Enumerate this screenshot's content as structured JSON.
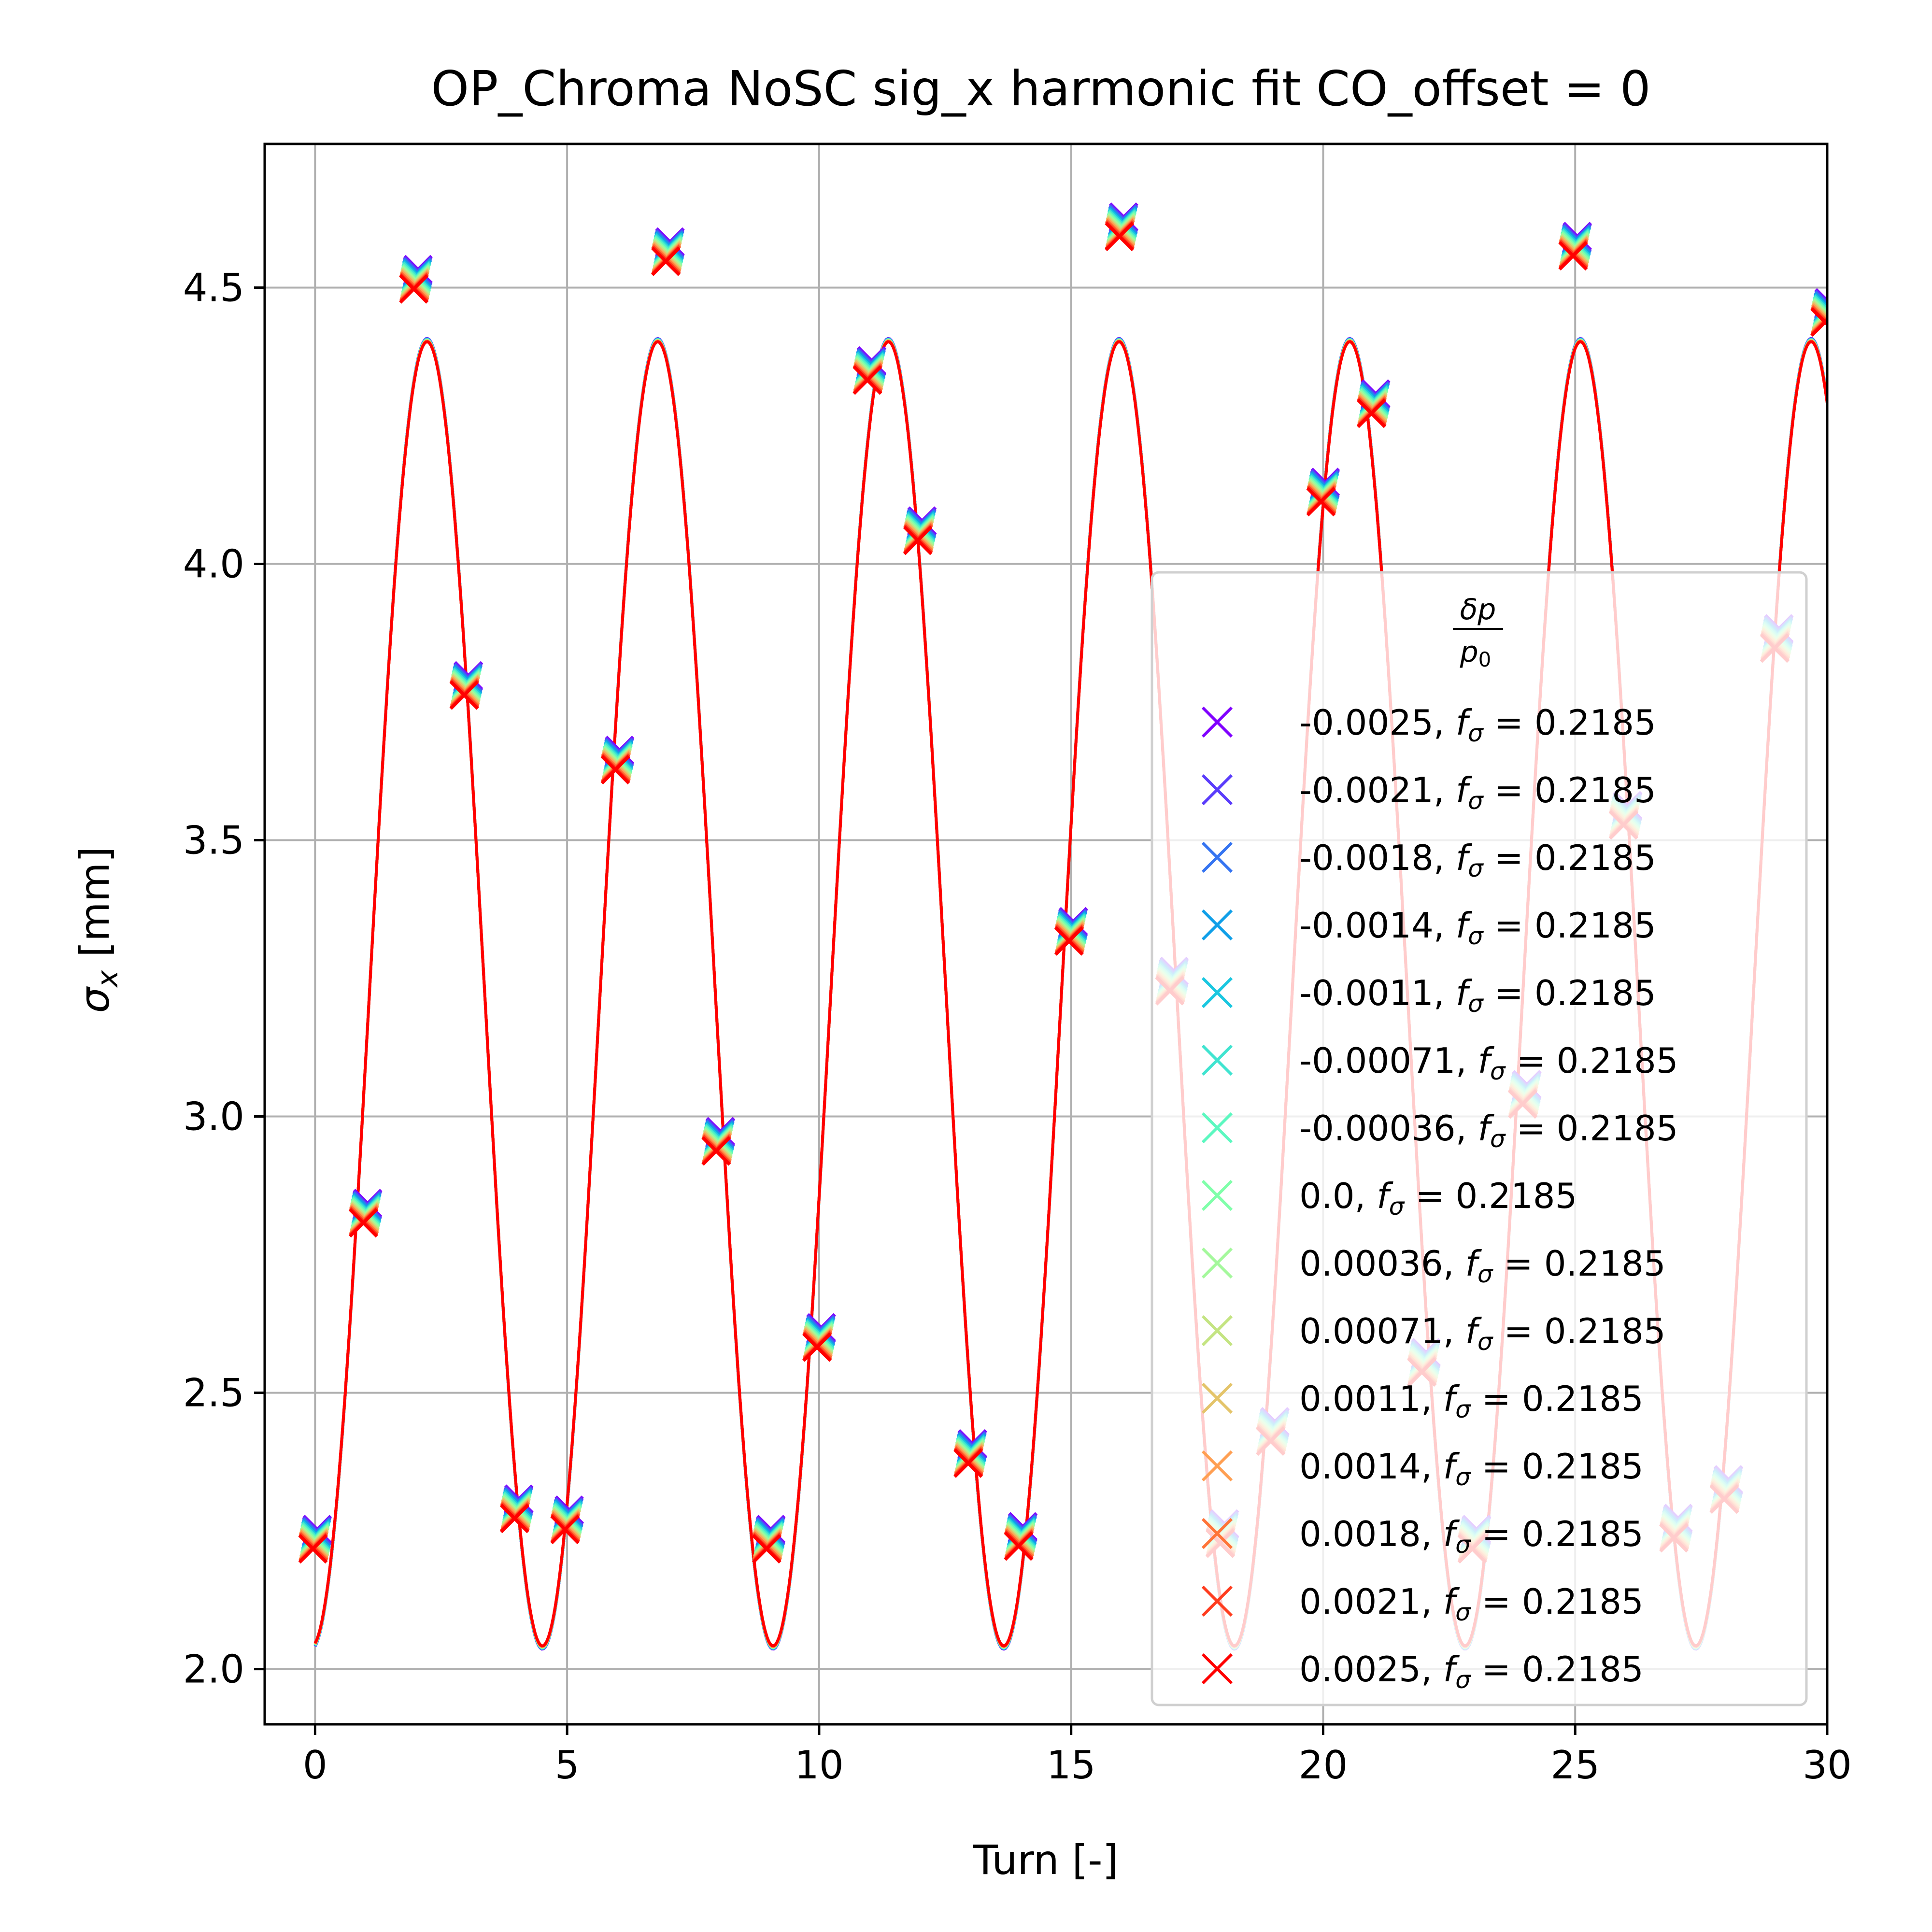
{
  "chart_data": {
    "type": "scatter",
    "title": "OP_Chroma NoSC sig_x harmonic fit CO_offset = 0",
    "xlabel": "Turn [-]",
    "ylabel_symbol": "σ",
    "ylabel_sub": "x",
    "ylabel_unit": " [mm]",
    "xlim": [
      -1,
      30
    ],
    "ylim": [
      1.9,
      4.76
    ],
    "xticks": [
      0,
      5,
      10,
      15,
      20,
      25,
      30
    ],
    "yticks": [
      2.0,
      2.5,
      3.0,
      3.5,
      4.0,
      4.5
    ],
    "ytick_labels": [
      "2.0",
      "2.5",
      "3.0",
      "3.5",
      "4.0",
      "4.5"
    ],
    "grid": true,
    "legend": {
      "placement": "lower-right",
      "title_num": "δp",
      "title_den_base": "p",
      "title_den_sub": "0",
      "freq_symbol": "f",
      "freq_sub": "σ",
      "freq_value": "0.2185"
    },
    "fit": {
      "offset": 3.222,
      "amplitude": 1.18,
      "frequency": 0.2185,
      "phase": -3.05,
      "color": "#ff0000"
    },
    "measured_turns": [
      0,
      1,
      2,
      3,
      4,
      5,
      6,
      7,
      8,
      9,
      10,
      11,
      12,
      13,
      14,
      15,
      16,
      17,
      18,
      19,
      20,
      21,
      22,
      23,
      24,
      25,
      26,
      27,
      28,
      29,
      30
    ],
    "measured_sigma_x": [
      2.235,
      2.825,
      4.515,
      3.78,
      2.29,
      2.27,
      3.645,
      4.565,
      2.955,
      2.235,
      2.6,
      4.35,
      4.06,
      2.39,
      2.24,
      3.335,
      4.61,
      3.245,
      2.245,
      2.43,
      4.13,
      4.29,
      2.555,
      2.235,
      3.04,
      4.575,
      3.545,
      2.255,
      2.325,
      3.865,
      4.455
    ],
    "series": [
      {
        "name": "-0.0025",
        "color": "#8000ff"
      },
      {
        "name": "-0.0021",
        "color": "#5a3cfb"
      },
      {
        "name": "-0.0018",
        "color": "#3574f1"
      },
      {
        "name": "-0.0014",
        "color": "#0f9fe8"
      },
      {
        "name": "-0.0011",
        "color": "#1ac7e0"
      },
      {
        "name": "-0.00071",
        "color": "#40e4d0"
      },
      {
        "name": "-0.00036",
        "color": "#5cf8c0"
      },
      {
        "name": "0.0",
        "color": "#80ffaa"
      },
      {
        "name": "0.00036",
        "color": "#a4f89c"
      },
      {
        "name": "0.00071",
        "color": "#c4e482"
      },
      {
        "name": "0.0011",
        "color": "#e4c46a"
      },
      {
        "name": "0.0014",
        "color": "#ff9f52"
      },
      {
        "name": "0.0018",
        "color": "#ff7438"
      },
      {
        "name": "0.0021",
        "color": "#ff3c1e"
      },
      {
        "name": "0.0025",
        "color": "#ff0000"
      }
    ]
  }
}
